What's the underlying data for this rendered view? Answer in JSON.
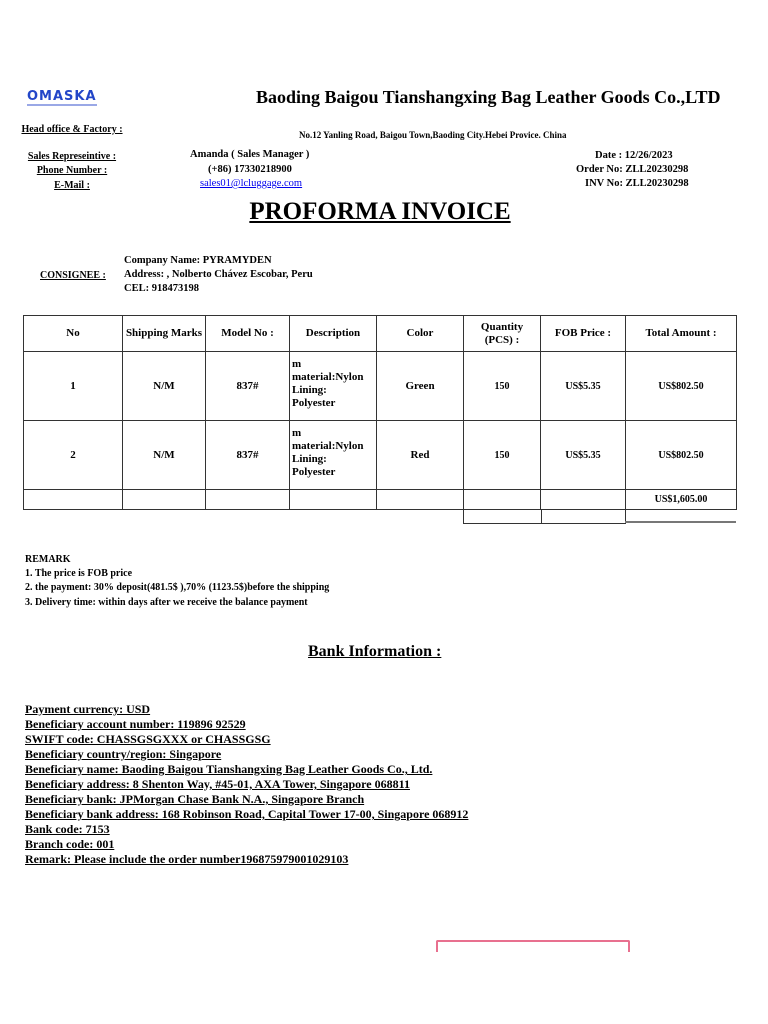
{
  "header": {
    "logo": "OMASKA",
    "company": "Baoding Baigou Tianshangxing Bag Leather Goods Co.,LTD",
    "head_office_label": "Head office & Factory :",
    "head_office_value": "No.12 Yanling Road, Baigou Town,Baoding City.Hebei Provice. China",
    "sales_rep_label": "Sales Represeintive :",
    "sales_rep_value": "Amanda ( Sales Manager )",
    "phone_label": "Phone Number :",
    "phone_value": "(+86) 17330218900",
    "email_label": "E-Mail :",
    "email_value": "sales01@lcluggage.com",
    "date": "Date : 12/26/2023",
    "order_no": "Order No: ZLL20230298",
    "inv_no": "INV No: ZLL20230298"
  },
  "title": "PROFORMA INVOICE",
  "consignee": {
    "label": "CONSIGNEE :",
    "company": "Company Name: PYRAMYDEN",
    "address": "Address: , Nolberto Chávez Escobar,   Peru",
    "cel": "CEL: 918473198"
  },
  "table": {
    "headers": [
      "No",
      "Shipping Marks",
      "Model No :",
      "Description",
      "Color",
      "Quantity (PCS)  :",
      "FOB Price :",
      "Total Amount :"
    ],
    "rows": [
      {
        "no": "1",
        "marks": "N/M",
        "model": "837#",
        "desc": [
          "m",
          "material:Nylon",
          "Lining:",
          "Polyester"
        ],
        "color": "Green",
        "qty": "150",
        "price": "US$5.35",
        "total": "US$802.50"
      },
      {
        "no": "2",
        "marks": "N/M",
        "model": "837#",
        "desc": [
          "m",
          "material:Nylon",
          "Lining:",
          "Polyester"
        ],
        "color": "Red",
        "qty": "150",
        "price": "US$5.35",
        "total": "US$802.50"
      }
    ],
    "grand_total": "US$1,605.00"
  },
  "remark": {
    "title": "REMARK",
    "items": [
      "1. The price is FOB price",
      "2. the payment: 30% deposit(481.5$ ),70% (1123.5$)before the shipping",
      "3. Delivery time: within days after we receive the balance payment"
    ]
  },
  "bank": {
    "title": "Bank Information :",
    "lines": [
      "Payment currency: USD",
      "Beneficiary account number: 119896 92529",
      "SWIFT code: CHASSGSGXXX or CHASSGSG",
      "Beneficiary country/region: Singapore",
      "Beneficiary name: Baoding Baigou Tianshangxing Bag Leather Goods Co., Ltd.",
      "Beneficiary address: 8 Shenton Way, #45-01, AXA Tower, Singapore 068811",
      "Beneficiary bank: JPMorgan Chase Bank N.A., Singapore Branch",
      "Beneficiary bank address: 168 Robinson Road, Capital Tower 17-00, Singapore 068912",
      "Bank code: 7153",
      "Branch code: 001",
      "Remark: Please include the order number196875979001029103"
    ]
  },
  "colors": {
    "logo": "#2346c8",
    "link": "#0000ee",
    "stamp": "#e8708f"
  }
}
